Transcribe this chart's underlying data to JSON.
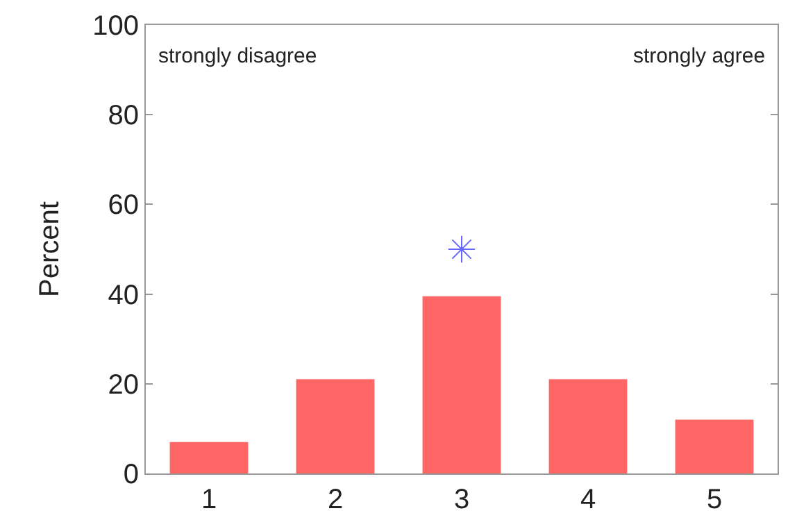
{
  "chart_data": {
    "type": "bar",
    "ylabel": "Percent",
    "categories": [
      "1",
      "2",
      "3",
      "4",
      "5"
    ],
    "ylim": [
      0,
      100
    ],
    "yticks": [
      0,
      20,
      40,
      60,
      80,
      100
    ],
    "grid": false,
    "series": [
      {
        "color": "#ff6666",
        "values": [
          7,
          21,
          39.5,
          21,
          12
        ]
      },
      {
        "type": "scatter",
        "color": "#6666ff",
        "marker": "cross",
        "x": [
          "3"
        ],
        "values": [
          50
        ]
      }
    ],
    "annotations": [
      "strongly disagree",
      "strongly agree"
    ]
  }
}
